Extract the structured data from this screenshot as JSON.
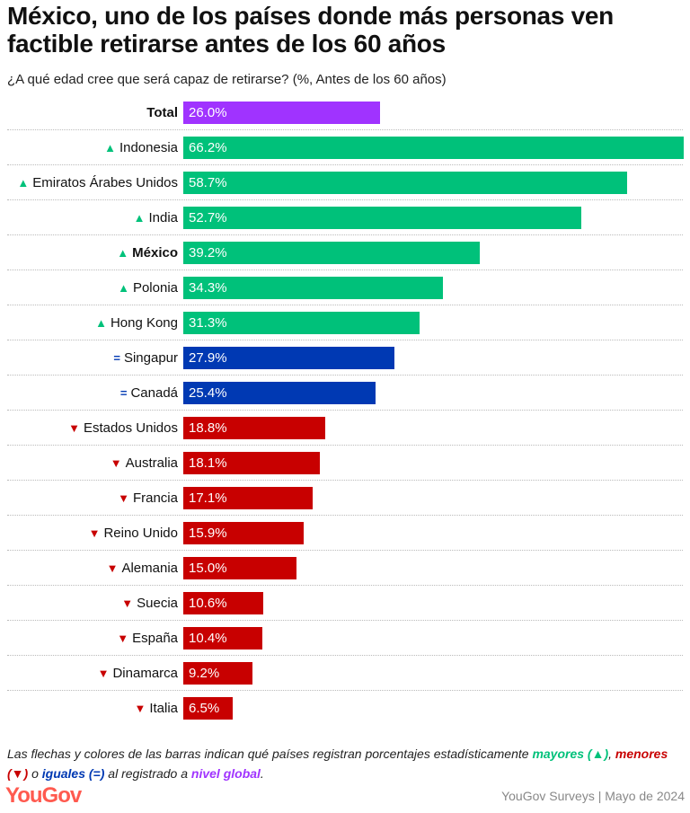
{
  "title": "México, uno de los países donde más personas ven factible retirarse antes de los 60 años",
  "subtitle": "¿A qué edad cree que será capaz de retirarse? (%, Antes de los 60 años)",
  "colors": {
    "total": "#a033ff",
    "higher": "#00c17a",
    "equal": "#0039b3",
    "lower": "#c80000"
  },
  "chart_data": {
    "type": "bar",
    "orientation": "horizontal",
    "xlim": [
      0,
      66.2
    ],
    "categories": [
      "Total",
      "Indonesia",
      "Emiratos Árabes Unidos",
      "India",
      "México",
      "Polonia",
      "Hong Kong",
      "Singapur",
      "Canadá",
      "Estados Unidos",
      "Australia",
      "Francia",
      "Reino Unido",
      "Alemania",
      "Suecia",
      "España",
      "Dinamarca",
      "Italia"
    ],
    "values": [
      26.0,
      66.2,
      58.7,
      52.7,
      39.2,
      34.3,
      31.3,
      27.9,
      25.4,
      18.8,
      18.1,
      17.1,
      15.9,
      15.0,
      10.6,
      10.4,
      9.2,
      6.5
    ],
    "value_labels": [
      "26.0%",
      "66.2%",
      "58.7%",
      "52.7%",
      "39.2%",
      "34.3%",
      "31.3%",
      "27.9%",
      "25.4%",
      "18.8%",
      "18.1%",
      "17.1%",
      "15.9%",
      "15.0%",
      "10.6%",
      "10.4%",
      "9.2%",
      "6.5%"
    ],
    "status": [
      "total",
      "higher",
      "higher",
      "higher",
      "higher",
      "higher",
      "higher",
      "equal",
      "equal",
      "lower",
      "lower",
      "lower",
      "lower",
      "lower",
      "lower",
      "lower",
      "lower",
      "lower"
    ],
    "markers": {
      "higher": "▲",
      "equal": "=",
      "lower": "▼"
    }
  },
  "note": {
    "text1": "Las flechas y colores de las barras indican qué países registran porcentajes estadísticamente ",
    "higher": "mayores (▲)",
    "comma": ", ",
    "lower": "menores (▼)",
    "text2": " o ",
    "equal": "iguales (=)",
    "text3": " al registrado a ",
    "global": "nivel global",
    "end": "."
  },
  "logo": "YouGov",
  "source": "YouGov Surveys | Mayo de 2024"
}
